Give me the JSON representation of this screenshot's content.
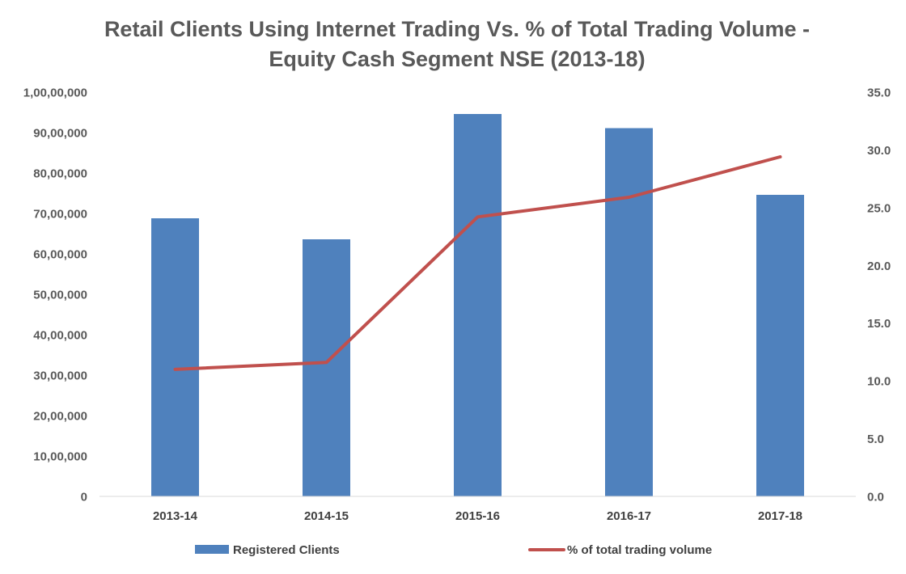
{
  "chart_data": {
    "type": "bar",
    "title_lines": [
      "Retail Clients Using Internet Trading Vs. % of Total Trading Volume -",
      "Equity Cash Segment NSE (2013-18)"
    ],
    "categories": [
      "2013-14",
      "2014-15",
      "2015-16",
      "2016-17",
      "2017-18"
    ],
    "series": [
      {
        "name": "Registered Clients",
        "type": "bar",
        "axis": "left",
        "color": "#4F81BD",
        "values": [
          6880000,
          6360000,
          9460000,
          9110000,
          7460000
        ]
      },
      {
        "name": "% of total trading volume",
        "type": "line",
        "axis": "right",
        "color": "#C0504D",
        "values": [
          11.0,
          11.6,
          24.2,
          25.9,
          29.4
        ]
      }
    ],
    "y_left": {
      "min": 0,
      "max": 10000000,
      "tick_values": [
        0,
        1000000,
        2000000,
        3000000,
        4000000,
        5000000,
        6000000,
        7000000,
        8000000,
        9000000,
        10000000
      ],
      "tick_labels": [
        "0",
        "10,00,000",
        "20,00,000",
        "30,00,000",
        "40,00,000",
        "50,00,000",
        "60,00,000",
        "70,00,000",
        "80,00,000",
        "90,00,000",
        "1,00,00,000"
      ]
    },
    "y_right": {
      "min": 0,
      "max": 35,
      "tick_values": [
        0,
        5,
        10,
        15,
        20,
        25,
        30,
        35
      ],
      "tick_labels": [
        "0.0",
        "5.0",
        "10.0",
        "15.0",
        "20.0",
        "25.0",
        "30.0",
        "35.0"
      ]
    },
    "grid": false,
    "legend": "bottom"
  }
}
